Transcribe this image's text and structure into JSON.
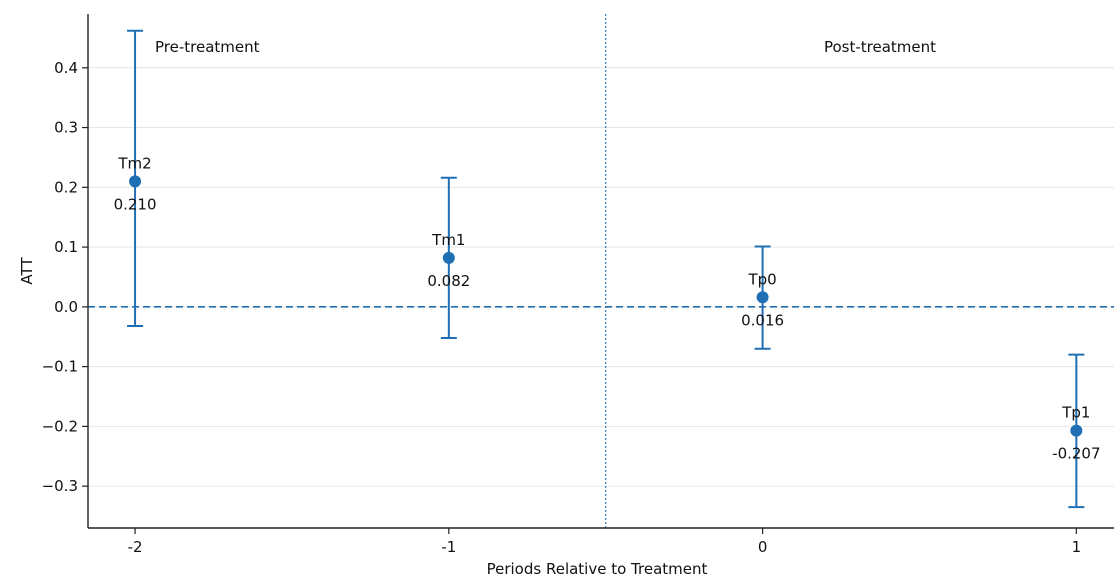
{
  "chart_data": {
    "type": "scatter",
    "xlabel": "Periods Relative to Treatment",
    "ylabel": "ATT",
    "xlim": [
      -2.15,
      1.12
    ],
    "ylim": [
      -0.37,
      0.49
    ],
    "x_ticks": [
      -2,
      -1,
      0,
      1
    ],
    "x_tick_labels": [
      "-2",
      "-1",
      "0",
      "1"
    ],
    "y_ticks": [
      -0.3,
      -0.2,
      -0.1,
      0.0,
      0.1,
      0.2,
      0.3,
      0.4
    ],
    "y_tick_labels": [
      "−0.3",
      "−0.2",
      "−0.1",
      "0.0",
      "0.1",
      "0.2",
      "0.3",
      "0.4"
    ],
    "grid": "horizontal",
    "zero_line": 0.0,
    "treatment_divider_x": -0.5,
    "region_labels": {
      "pre": "Pre-treatment",
      "post": "Post-treatment"
    },
    "points": [
      {
        "x": -2,
        "y": 0.21,
        "lower": -0.032,
        "upper": 0.462,
        "name": "Tm2",
        "value_label": "0.210"
      },
      {
        "x": -1,
        "y": 0.082,
        "lower": -0.052,
        "upper": 0.216,
        "name": "Tm1",
        "value_label": "0.082"
      },
      {
        "x": 0,
        "y": 0.016,
        "lower": -0.07,
        "upper": 0.101,
        "name": "Tp0",
        "value_label": "0.016"
      },
      {
        "x": 1,
        "y": -0.207,
        "lower": -0.335,
        "upper": -0.08,
        "name": "Tp1",
        "value_label": "-0.207"
      }
    ],
    "colors": {
      "marker": "#1f6fb4",
      "errorbar": "#1f6fb4",
      "zero_line": "#1f6fb4",
      "divider": "#1f6fb4",
      "grid": "#e6e6e6",
      "axis": "#222222"
    }
  }
}
